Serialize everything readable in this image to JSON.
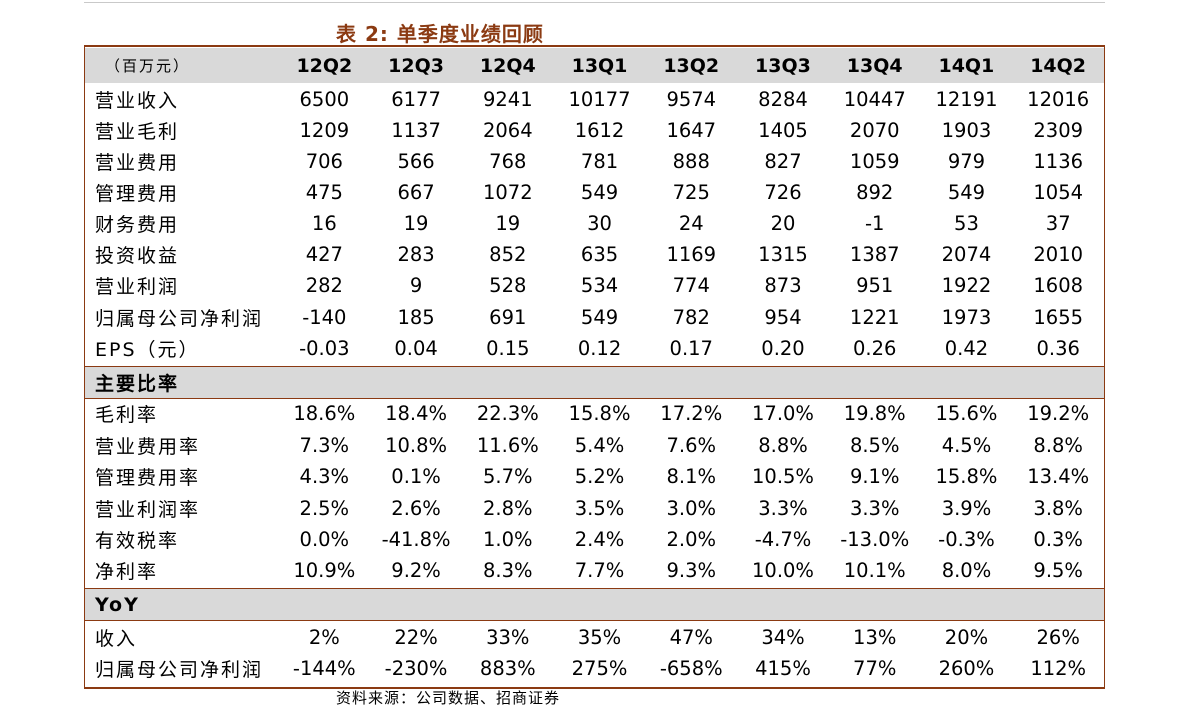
{
  "title": "表 2:  单季度业绩回顾",
  "header": {
    "unit_label": "（百万元）",
    "quarters": [
      "12Q2",
      "12Q3",
      "12Q4",
      "13Q1",
      "13Q2",
      "13Q3",
      "13Q4",
      "14Q1",
      "14Q2"
    ]
  },
  "financials": [
    {
      "label": "营业收入",
      "values": [
        "6500",
        "6177",
        "9241",
        "10177",
        "9574",
        "8284",
        "10447",
        "12191",
        "12016"
      ]
    },
    {
      "label": "营业毛利",
      "values": [
        "1209",
        "1137",
        "2064",
        "1612",
        "1647",
        "1405",
        "2070",
        "1903",
        "2309"
      ]
    },
    {
      "label": "营业费用",
      "values": [
        "706",
        "566",
        "768",
        "781",
        "888",
        "827",
        "1059",
        "979",
        "1136"
      ]
    },
    {
      "label": "管理费用",
      "values": [
        "475",
        "667",
        "1072",
        "549",
        "725",
        "726",
        "892",
        "549",
        "1054"
      ]
    },
    {
      "label": "财务费用",
      "values": [
        "16",
        "19",
        "19",
        "30",
        "24",
        "20",
        "-1",
        "53",
        "37"
      ]
    },
    {
      "label": "投资收益",
      "values": [
        "427",
        "283",
        "852",
        "635",
        "1169",
        "1315",
        "1387",
        "2074",
        "2010"
      ]
    },
    {
      "label": "营业利润",
      "values": [
        "282",
        "9",
        "528",
        "534",
        "774",
        "873",
        "951",
        "1922",
        "1608"
      ]
    },
    {
      "label": "归属母公司净利润",
      "values": [
        "-140",
        "185",
        "691",
        "549",
        "782",
        "954",
        "1221",
        "1973",
        "1655"
      ]
    },
    {
      "label": "EPS（元）",
      "values": [
        "-0.03",
        "0.04",
        "0.15",
        "0.12",
        "0.17",
        "0.20",
        "0.26",
        "0.42",
        "0.36"
      ]
    }
  ],
  "ratios_section": {
    "title": "主要比率",
    "rows": [
      {
        "label": "毛利率",
        "values": [
          "18.6%",
          "18.4%",
          "22.3%",
          "15.8%",
          "17.2%",
          "17.0%",
          "19.8%",
          "15.6%",
          "19.2%"
        ]
      },
      {
        "label": "营业费用率",
        "values": [
          "7.3%",
          "10.8%",
          "11.6%",
          "5.4%",
          "7.6%",
          "8.8%",
          "8.5%",
          "4.5%",
          "8.8%"
        ]
      },
      {
        "label": "管理费用率",
        "values": [
          "4.3%",
          "0.1%",
          "5.7%",
          "5.2%",
          "8.1%",
          "10.5%",
          "9.1%",
          "15.8%",
          "13.4%"
        ]
      },
      {
        "label": "营业利润率",
        "values": [
          "2.5%",
          "2.6%",
          "2.8%",
          "3.5%",
          "3.0%",
          "3.3%",
          "3.3%",
          "3.9%",
          "3.8%"
        ]
      },
      {
        "label": "有效税率",
        "values": [
          "0.0%",
          "-41.8%",
          "1.0%",
          "2.4%",
          "2.0%",
          "-4.7%",
          "-13.0%",
          "-0.3%",
          "0.3%"
        ]
      },
      {
        "label": "净利率",
        "values": [
          "10.9%",
          "9.2%",
          "8.3%",
          "7.7%",
          "9.3%",
          "10.0%",
          "10.1%",
          "8.0%",
          "9.5%"
        ]
      }
    ]
  },
  "yoy_section": {
    "title": "YoY",
    "rows": [
      {
        "label": "收入",
        "values": [
          "2%",
          "22%",
          "33%",
          "35%",
          "47%",
          "34%",
          "13%",
          "20%",
          "26%"
        ]
      },
      {
        "label": "归属母公司净利润",
        "values": [
          "-144%",
          "-230%",
          "883%",
          "275%",
          "-658%",
          "415%",
          "77%",
          "260%",
          "112%"
        ]
      }
    ]
  },
  "source": "资料来源：公司数据、招商证券"
}
